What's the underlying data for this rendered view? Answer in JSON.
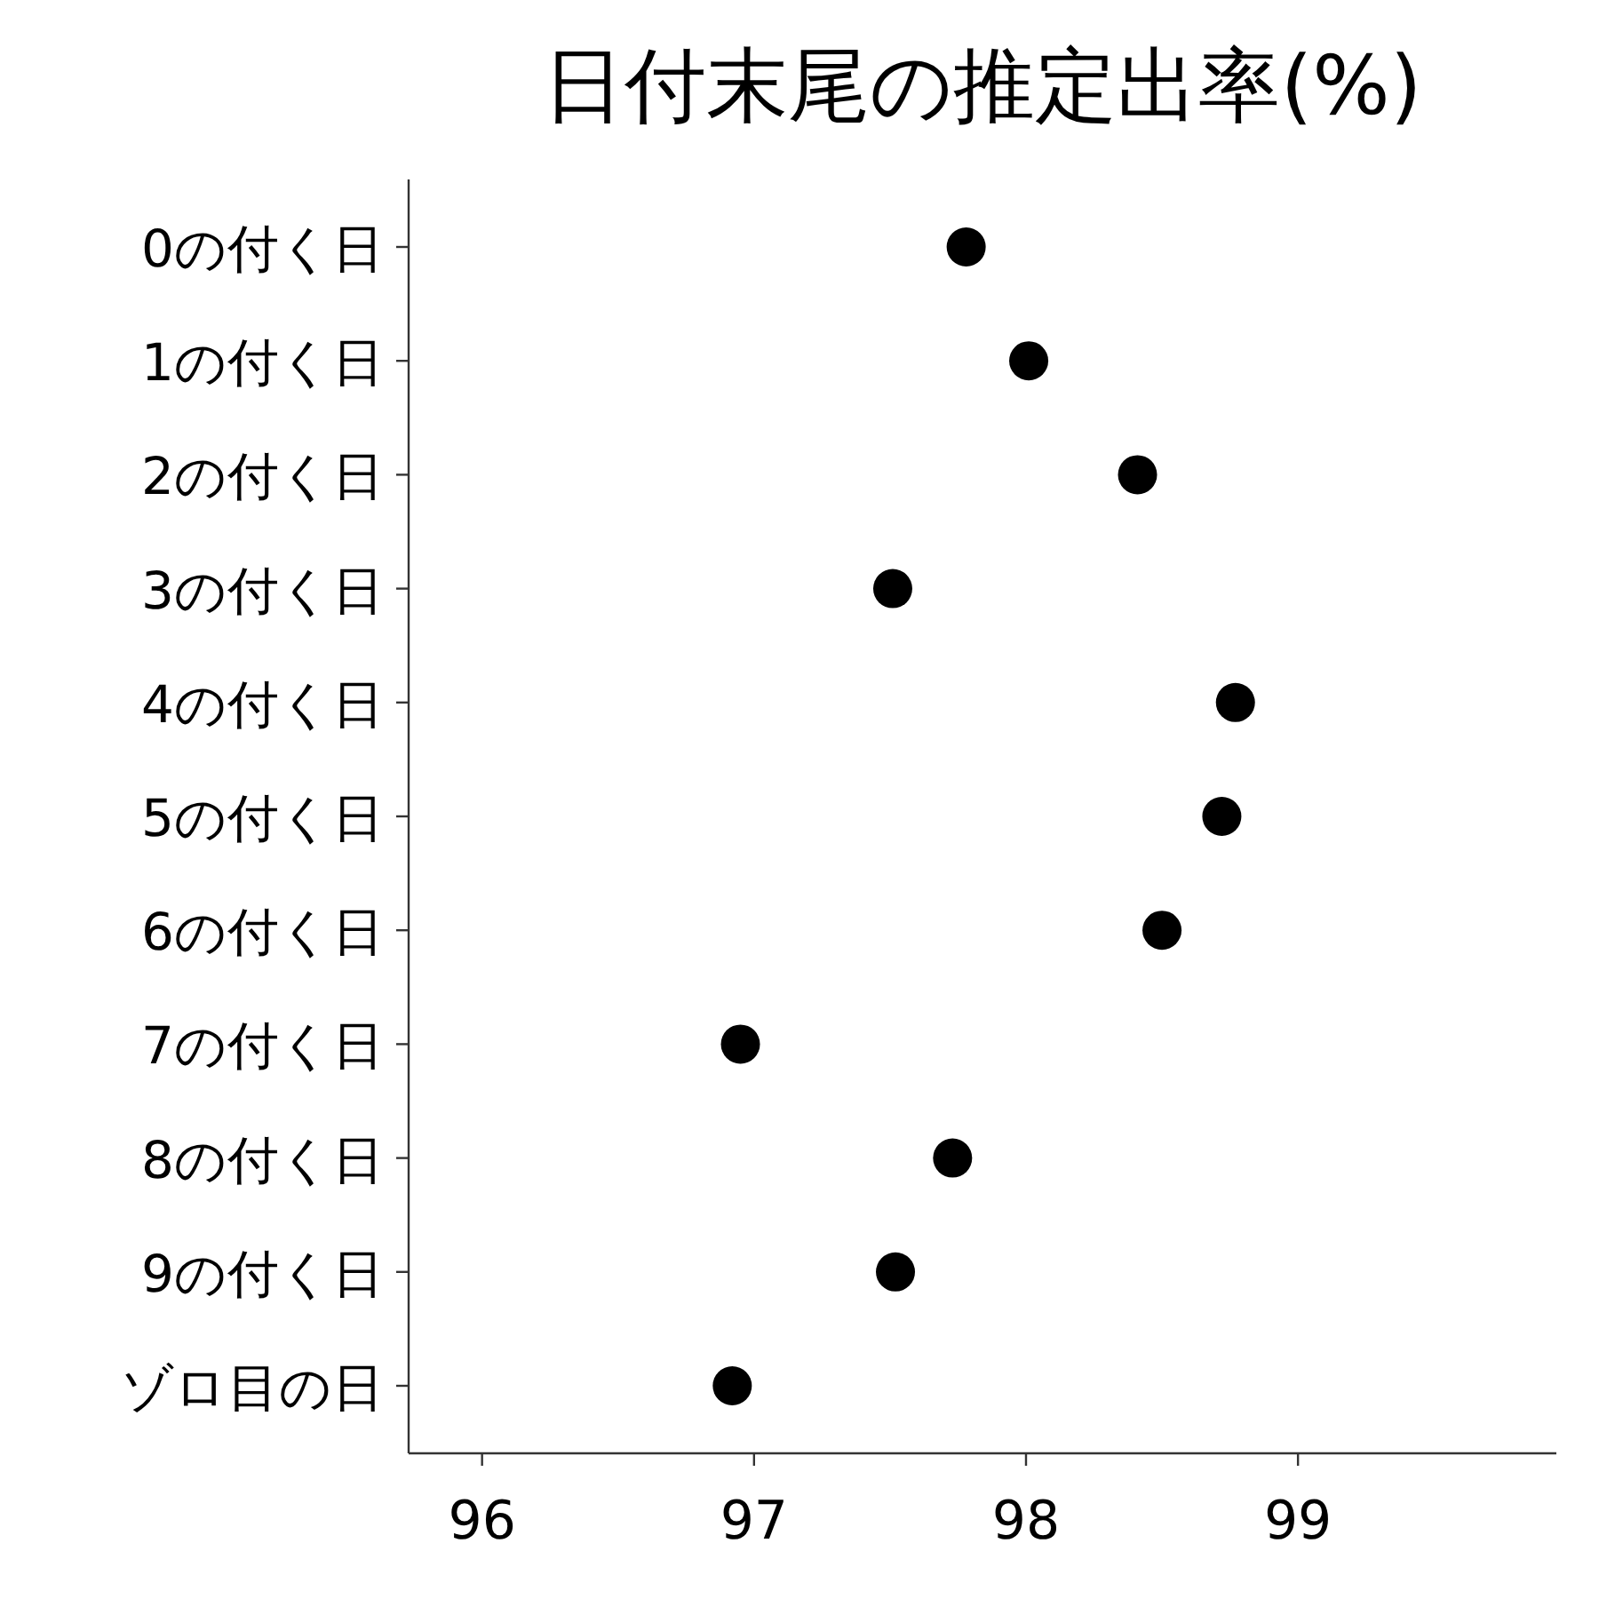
{
  "chart_data": {
    "type": "scatter",
    "orientation": "horizontal",
    "title": "日付末尾の推定出率(%)",
    "categories": [
      "0の付く日",
      "1の付く日",
      "2の付く日",
      "3の付く日",
      "4の付く日",
      "5の付く日",
      "6の付く日",
      "7の付く日",
      "8の付く日",
      "9の付く日",
      "ゾロ目の日"
    ],
    "values": [
      97.78,
      98.01,
      98.41,
      97.51,
      98.77,
      98.72,
      98.5,
      96.95,
      97.73,
      97.52,
      96.92
    ],
    "color": "#000000",
    "marker": "circle",
    "grid": false,
    "xlim": [
      95.73,
      99.95
    ],
    "xticks": [
      96,
      97,
      98,
      99
    ]
  }
}
